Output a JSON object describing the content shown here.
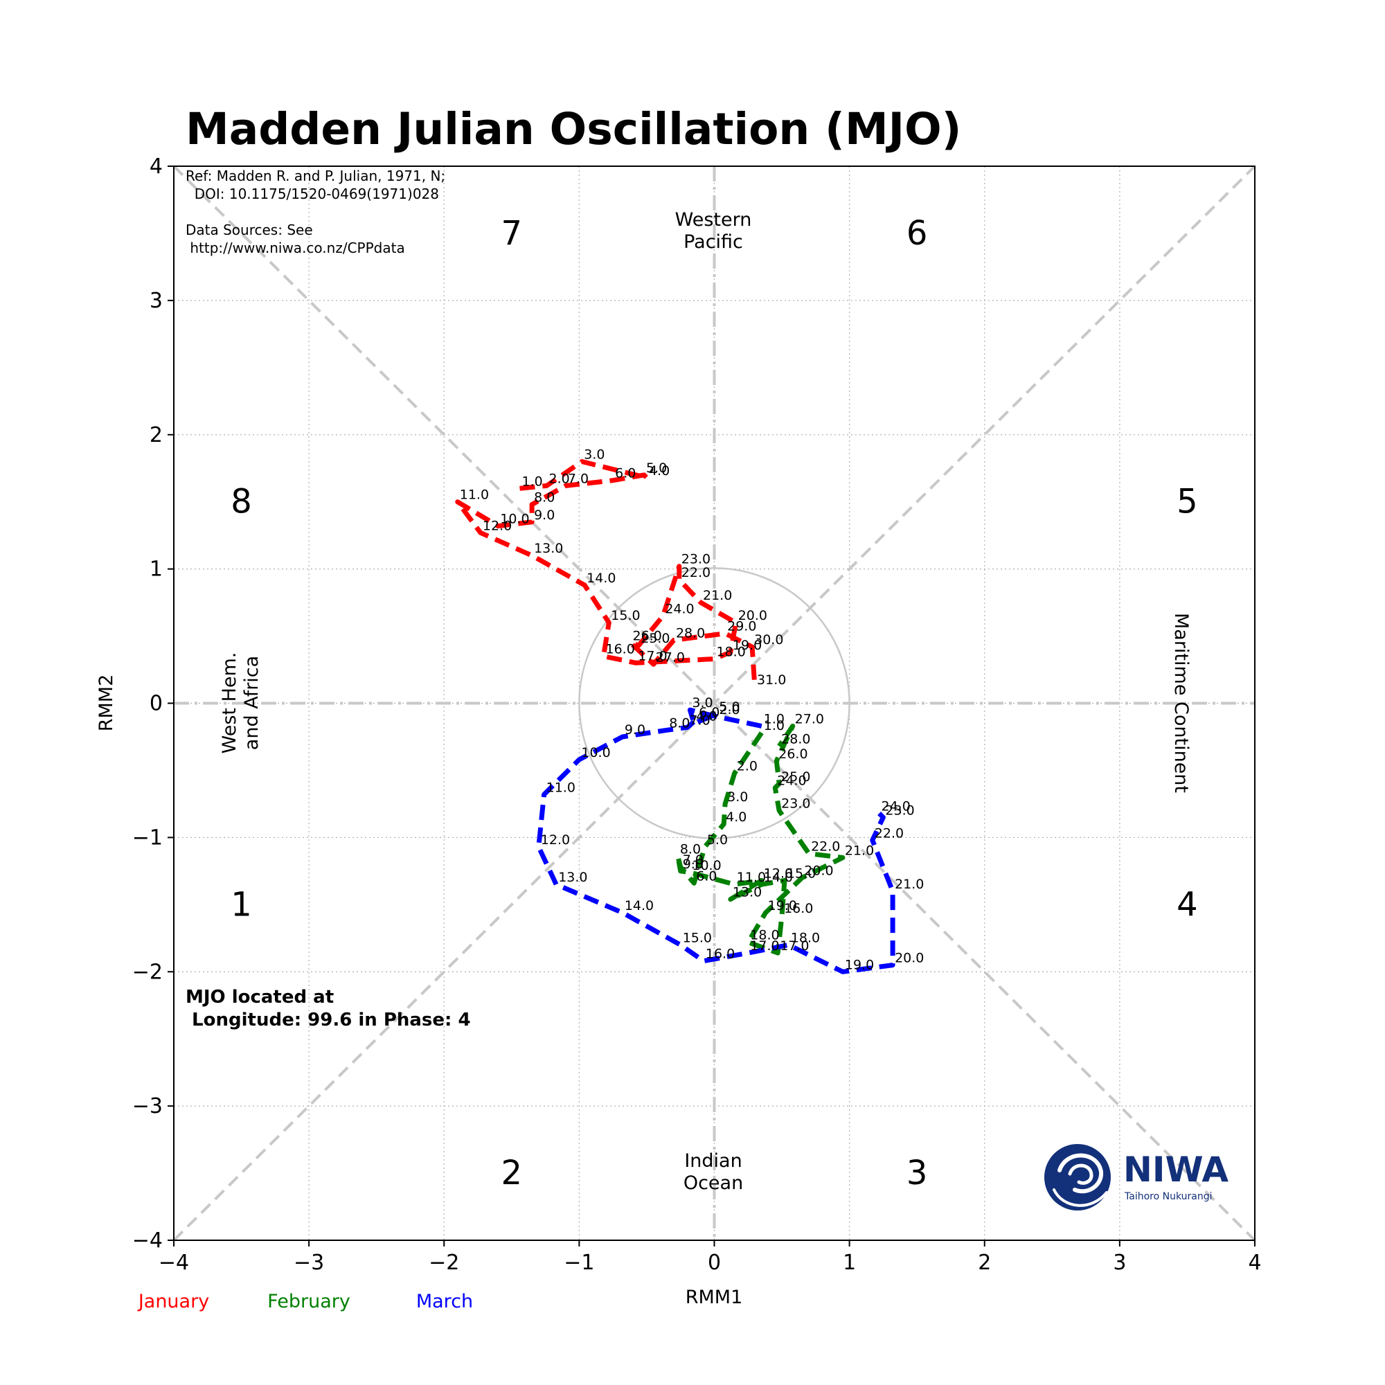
{
  "colors": {
    "January": "#ff0000",
    "February": "#008000",
    "March": "#0000ff",
    "reference": "#c8c8c8",
    "niwa_blue": "#13307a"
  },
  "chart_data": {
    "type": "line",
    "title": "Madden Julian Oscillation (MJO)",
    "xlabel": "RMM1",
    "ylabel": "RMM2",
    "xlim": [
      -4,
      4
    ],
    "ylim": [
      -4,
      4
    ],
    "grid": true,
    "xticks": [
      -4,
      -3,
      -2,
      -1,
      0,
      1,
      2,
      3,
      4
    ],
    "yticks": [
      -4,
      -3,
      -2,
      -1,
      0,
      1,
      2,
      3,
      4
    ],
    "xtick_labels": [
      "−4",
      "−3",
      "−2",
      "−1",
      "0",
      "1",
      "2",
      "3",
      "4"
    ],
    "ytick_labels": [
      "−4",
      "−3",
      "−2",
      "−1",
      "0",
      "1",
      "2",
      "3",
      "4"
    ],
    "unit_circle_radius": 1,
    "phases": [
      {
        "label": "1",
        "x": -3.5,
        "y": -1.5
      },
      {
        "label": "2",
        "x": -1.5,
        "y": -3.5
      },
      {
        "label": "3",
        "x": 1.5,
        "y": -3.5
      },
      {
        "label": "4",
        "x": 3.5,
        "y": -1.5
      },
      {
        "label": "5",
        "x": 3.5,
        "y": 1.5
      },
      {
        "label": "6",
        "x": 1.5,
        "y": 3.5
      },
      {
        "label": "7",
        "x": -1.5,
        "y": 3.5
      },
      {
        "label": "8",
        "x": -3.5,
        "y": 1.5
      }
    ],
    "regions": {
      "western_pacific": [
        "Western",
        "Pacific"
      ],
      "indian_ocean": [
        "Indian",
        "Ocean"
      ],
      "west_hem": [
        "West Hem.",
        "and Africa"
      ],
      "maritime": "Maritime Continent"
    },
    "series": [
      {
        "name": "January",
        "points": [
          {
            "x": -1.44,
            "y": 1.6,
            "label": "1.0"
          },
          {
            "x": -1.24,
            "y": 1.62,
            "label": "2.0"
          },
          {
            "x": -0.98,
            "y": 1.8,
            "label": "3.0"
          },
          {
            "x": -0.5,
            "y": 1.68,
            "label": "4.0"
          },
          {
            "x": -0.52,
            "y": 1.7,
            "label": "5.0"
          },
          {
            "x": -0.75,
            "y": 1.66,
            "label": "6.0"
          },
          {
            "x": -1.1,
            "y": 1.62,
            "label": "7.0"
          },
          {
            "x": -1.35,
            "y": 1.48,
            "label": "8.0"
          },
          {
            "x": -1.35,
            "y": 1.35,
            "label": "9.0"
          },
          {
            "x": -1.6,
            "y": 1.32,
            "label": "10.0"
          },
          {
            "x": -1.9,
            "y": 1.5,
            "label": "11.0"
          },
          {
            "x": -1.73,
            "y": 1.27,
            "label": "12.0"
          },
          {
            "x": -1.35,
            "y": 1.1,
            "label": "13.0"
          },
          {
            "x": -0.96,
            "y": 0.88,
            "label": "14.0"
          },
          {
            "x": -0.78,
            "y": 0.6,
            "label": "15.0"
          },
          {
            "x": -0.82,
            "y": 0.35,
            "label": "16.0"
          },
          {
            "x": -0.58,
            "y": 0.3,
            "label": "17.0"
          },
          {
            "x": 0.0,
            "y": 0.33,
            "label": "18.0"
          },
          {
            "x": 0.12,
            "y": 0.38,
            "label": "19.0"
          },
          {
            "x": 0.16,
            "y": 0.6,
            "label": "20.0"
          },
          {
            "x": -0.1,
            "y": 0.75,
            "label": "21.0"
          },
          {
            "x": -0.26,
            "y": 0.92,
            "label": "22.0"
          },
          {
            "x": -0.26,
            "y": 1.02,
            "label": "23.0"
          },
          {
            "x": -0.38,
            "y": 0.65,
            "label": "24.0"
          },
          {
            "x": -0.56,
            "y": 0.43,
            "label": "25.0"
          },
          {
            "x": -0.62,
            "y": 0.45,
            "label": "26.0"
          },
          {
            "x": -0.45,
            "y": 0.29,
            "label": "27.0"
          },
          {
            "x": -0.3,
            "y": 0.47,
            "label": "28.0"
          },
          {
            "x": 0.08,
            "y": 0.52,
            "label": "29.0"
          },
          {
            "x": 0.28,
            "y": 0.42,
            "label": "30.0"
          },
          {
            "x": 0.3,
            "y": 0.12,
            "label": "31.0"
          }
        ]
      },
      {
        "name": "February",
        "points": [
          {
            "x": 0.35,
            "y": -0.22,
            "label": "1.0"
          },
          {
            "x": 0.15,
            "y": -0.52,
            "label": "2.0"
          },
          {
            "x": 0.08,
            "y": -0.75,
            "label": "3.0"
          },
          {
            "x": 0.07,
            "y": -0.9,
            "label": "4.0"
          },
          {
            "x": -0.07,
            "y": -1.07,
            "label": "5.0"
          },
          {
            "x": -0.15,
            "y": -1.34,
            "label": "6.0"
          },
          {
            "x": -0.25,
            "y": -1.22,
            "label": "7.0"
          },
          {
            "x": -0.27,
            "y": -1.14,
            "label": "8.0"
          },
          {
            "x": -0.25,
            "y": -1.25,
            "label": "9.0"
          },
          {
            "x": -0.18,
            "y": -1.26,
            "label": "10.0"
          },
          {
            "x": 0.15,
            "y": -1.35,
            "label": "11.0"
          },
          {
            "x": 0.35,
            "y": -1.32,
            "label": "12.0"
          },
          {
            "x": 0.12,
            "y": -1.46,
            "label": "13.0"
          },
          {
            "x": 0.35,
            "y": -1.35,
            "label": "14.0"
          },
          {
            "x": 0.52,
            "y": -1.32,
            "label": "15.0"
          },
          {
            "x": 0.5,
            "y": -1.58,
            "label": "16.0"
          },
          {
            "x": 0.47,
            "y": -1.86,
            "label": "17.0"
          },
          {
            "x": 0.25,
            "y": -1.78,
            "label": "18.0"
          },
          {
            "x": 0.38,
            "y": -1.56,
            "label": "19.0"
          },
          {
            "x": 0.65,
            "y": -1.3,
            "label": "20.0"
          },
          {
            "x": 0.95,
            "y": -1.15,
            "label": "21.0"
          },
          {
            "x": 0.7,
            "y": -1.12,
            "label": "22.0"
          },
          {
            "x": 0.48,
            "y": -0.8,
            "label": "23.0"
          },
          {
            "x": 0.45,
            "y": -0.63,
            "label": "24.0"
          },
          {
            "x": 0.48,
            "y": -0.6,
            "label": "25.0"
          },
          {
            "x": 0.46,
            "y": -0.43,
            "label": "26.0"
          },
          {
            "x": 0.58,
            "y": -0.17,
            "label": "27.0"
          },
          {
            "x": 0.48,
            "y": -0.32,
            "label": "28.0"
          }
        ]
      },
      {
        "name": "March",
        "points": [
          {
            "x": 0.35,
            "y": -0.17,
            "label": "1.0"
          },
          {
            "x": 0.02,
            "y": -0.1,
            "label": "2.0"
          },
          {
            "x": -0.18,
            "y": -0.05,
            "label": "3.0"
          },
          {
            "x": -0.15,
            "y": -0.15,
            "label": "4.0"
          },
          {
            "x": 0.02,
            "y": -0.08,
            "label": "5.0"
          },
          {
            "x": -0.13,
            "y": -0.12,
            "label": "6.0"
          },
          {
            "x": -0.2,
            "y": -0.18,
            "label": "7.0"
          },
          {
            "x": -0.35,
            "y": -0.2,
            "label": "8.0"
          },
          {
            "x": -0.68,
            "y": -0.25,
            "label": "9.0"
          },
          {
            "x": -1.0,
            "y": -0.42,
            "label": "10.0"
          },
          {
            "x": -1.26,
            "y": -0.68,
            "label": "11.0"
          },
          {
            "x": -1.3,
            "y": -1.07,
            "label": "12.0"
          },
          {
            "x": -1.17,
            "y": -1.35,
            "label": "13.0"
          },
          {
            "x": -0.68,
            "y": -1.56,
            "label": "14.0"
          },
          {
            "x": -0.25,
            "y": -1.8,
            "label": "15.0"
          },
          {
            "x": -0.08,
            "y": -1.92,
            "label": "16.0"
          },
          {
            "x": 0.25,
            "y": -1.86,
            "label": "17.0"
          },
          {
            "x": 0.55,
            "y": -1.8,
            "label": "18.0"
          },
          {
            "x": 0.95,
            "y": -2.0,
            "label": "19.0"
          },
          {
            "x": 1.32,
            "y": -1.95,
            "label": "20.0"
          },
          {
            "x": 1.32,
            "y": -1.4,
            "label": "21.0"
          },
          {
            "x": 1.17,
            "y": -1.02,
            "label": "22.0"
          },
          {
            "x": 1.25,
            "y": -0.85,
            "label": "23.0"
          },
          {
            "x": 1.22,
            "y": -0.82,
            "label": "24.0"
          }
        ]
      }
    ],
    "reference_text": [
      "Ref: Madden R. and P. Julian, 1971, N;",
      "  DOI: 10.1175/1520-0469(1971)028",
      "",
      "Data Sources: See",
      " http://www.niwa.co.nz/CPPdata"
    ],
    "mjo_status": [
      "MJO located at",
      " Longitude: 99.6 in Phase: 4"
    ],
    "month_legend": [
      "January",
      "February",
      "March"
    ]
  },
  "logo": {
    "name": "NIWA",
    "tagline": "Taihoro Nukurangi"
  }
}
